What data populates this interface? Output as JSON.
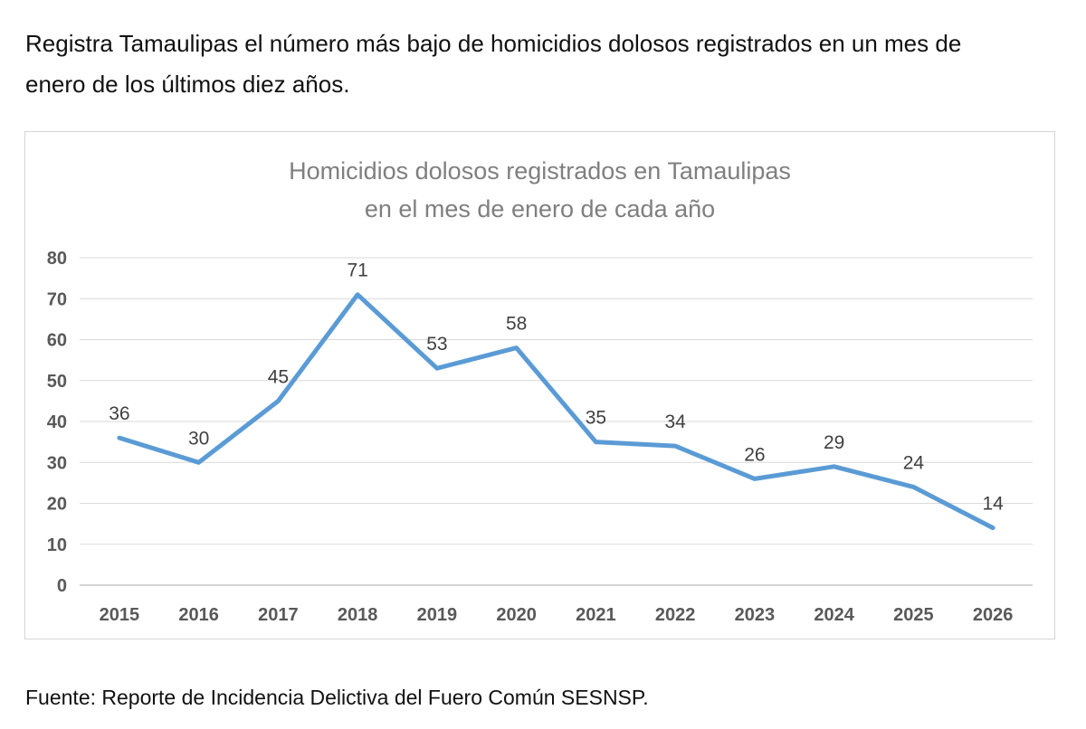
{
  "page": {
    "header": {
      "line1": "Registra Tamaulipas el número más bajo de homicidios dolosos registrados en un mes de",
      "line2": "enero de los últimos diez años."
    },
    "source": "Fuente: Reporte de Incidencia Delictiva del Fuero Común SESNSP."
  },
  "chart_data": {
    "type": "line",
    "title": "Homicidios dolosos registrados en Tamaulipas en el mes de enero de cada año",
    "title_line1": "Homicidios dolosos registrados en Tamaulipas",
    "title_line2": "en el mes de enero de cada año",
    "categories": [
      "2015",
      "2016",
      "2017",
      "2018",
      "2019",
      "2020",
      "2021",
      "2022",
      "2023",
      "2024",
      "2025",
      "2026"
    ],
    "values": [
      36,
      30,
      45,
      71,
      53,
      58,
      35,
      34,
      26,
      29,
      24,
      14
    ],
    "xlabel": "",
    "ylabel": "",
    "ylim": [
      0,
      80
    ],
    "yticks": [
      0,
      10,
      20,
      30,
      40,
      50,
      60,
      70,
      80
    ],
    "grid": "horizontal",
    "legend": "none",
    "data_labels": "above-points",
    "colors": {
      "line": "#5b9bd5",
      "gridline": "#d9d9d9",
      "axis_line": "#c3c3c3",
      "tick_label": "#595959",
      "data_label": "#404040",
      "title": "#7f7f7f"
    }
  }
}
